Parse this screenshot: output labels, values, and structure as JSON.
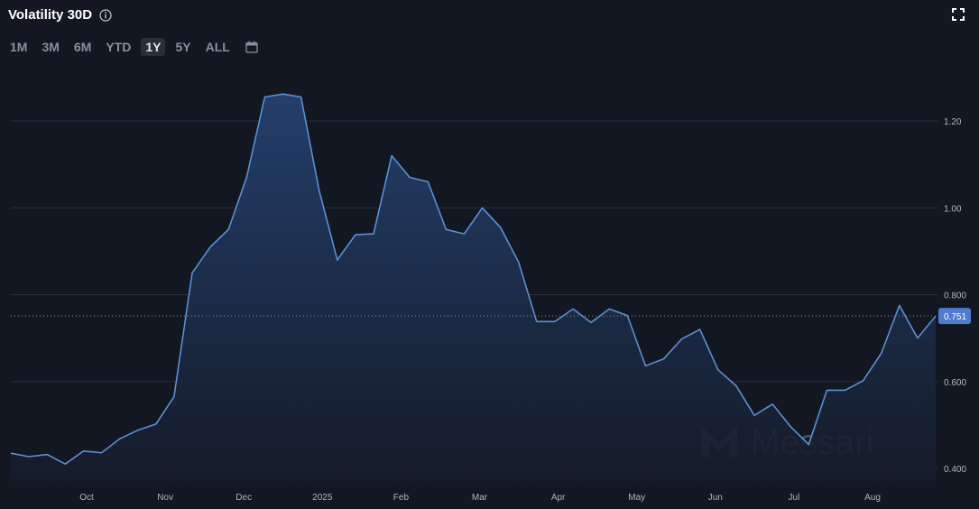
{
  "header": {
    "title": "Volatility 30D",
    "info_icon": "info-icon",
    "expand_icon": "expand-icon"
  },
  "ranges": {
    "items": [
      "1M",
      "3M",
      "6M",
      "YTD",
      "1Y",
      "5Y",
      "ALL"
    ],
    "selected": "1Y",
    "calendar_icon": "calendar-icon"
  },
  "watermark": "Messari",
  "colors": {
    "background": "#131722",
    "line": "#5b8fd4",
    "area_top": "#24416e",
    "area_bottom": "#151b2a",
    "grid": "#2a2e39",
    "badge": "#4f7ccd"
  },
  "chart_data": {
    "type": "area",
    "title": "Volatility 30D",
    "xlabel": "",
    "ylabel": "",
    "x_ticks": [
      "Oct",
      "Nov",
      "Dec",
      "2025",
      "Feb",
      "Mar",
      "Apr",
      "May",
      "Jun",
      "Jul",
      "Aug"
    ],
    "y_ticks": [
      "0.400",
      "0.600",
      "0.800",
      "1.00",
      "1.20"
    ],
    "ylim": [
      0.4,
      1.2
    ],
    "grid": true,
    "last_value_label": "0.751",
    "series": [
      {
        "values": [
          0.435,
          0.427,
          0.432,
          0.41,
          0.44,
          0.436,
          0.468,
          0.488,
          0.502,
          0.565,
          0.85,
          0.91,
          0.95,
          1.07,
          1.255,
          1.262,
          1.255,
          1.04,
          0.88,
          0.938,
          0.94,
          1.12,
          1.07,
          1.06,
          0.95,
          0.94,
          1.0,
          0.955,
          0.875,
          0.738,
          0.738,
          0.767,
          0.736,
          0.767,
          0.752,
          0.636,
          0.652,
          0.698,
          0.72,
          0.627,
          0.59,
          0.522,
          0.548,
          0.496,
          0.455,
          0.58,
          0.58,
          0.602,
          0.665,
          0.775,
          0.7,
          0.751
        ]
      }
    ]
  }
}
